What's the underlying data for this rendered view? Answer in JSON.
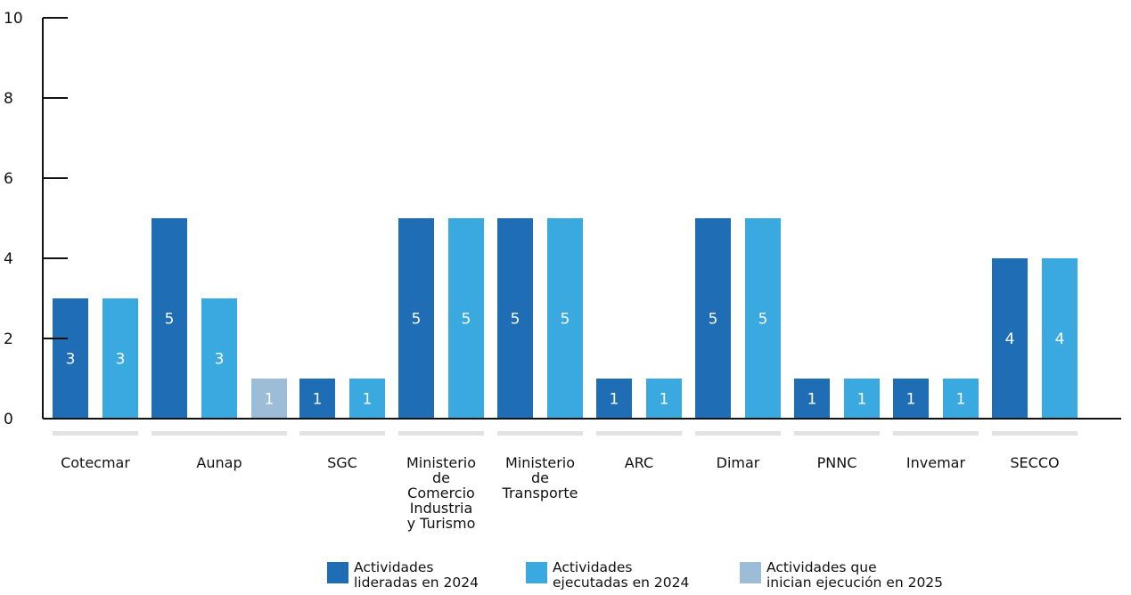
{
  "chart_data": {
    "type": "bar",
    "categories": [
      [
        "Cotecmar"
      ],
      [
        "Aunap"
      ],
      [
        "SGC"
      ],
      [
        "Ministerio",
        "de",
        "Comercio",
        "Industria",
        "y Turismo"
      ],
      [
        "Ministerio",
        "de",
        "Transporte"
      ],
      [
        "ARC"
      ],
      [
        "Dimar"
      ],
      [
        "PNNC"
      ],
      [
        "Invemar"
      ],
      [
        "SECCO"
      ]
    ],
    "series": [
      {
        "name": "Actividades lideradas en 2024",
        "name_lines": [
          "Actividades",
          "lideradas en 2024"
        ],
        "color": "#1f6db5",
        "values": [
          3,
          5,
          1,
          5,
          5,
          1,
          5,
          1,
          1,
          4
        ]
      },
      {
        "name": "Actividades ejecutadas en 2024",
        "name_lines": [
          "Actividades",
          "ejecutadas en 2024"
        ],
        "color": "#3aa9e0",
        "values": [
          3,
          3,
          1,
          5,
          5,
          1,
          5,
          1,
          1,
          4
        ]
      },
      {
        "name": "Actividades que inician ejecución en 2025",
        "name_lines": [
          "Actividades que",
          "inician ejecución en 2025"
        ],
        "color": "#9dbcd8",
        "values": [
          null,
          1,
          null,
          null,
          null,
          null,
          null,
          null,
          null,
          null
        ]
      }
    ],
    "yticks": [
      "0",
      "2",
      "4",
      "6",
      "8",
      "10"
    ],
    "ylim": [
      0,
      10
    ],
    "grid": false,
    "legend_position": "bottom"
  }
}
